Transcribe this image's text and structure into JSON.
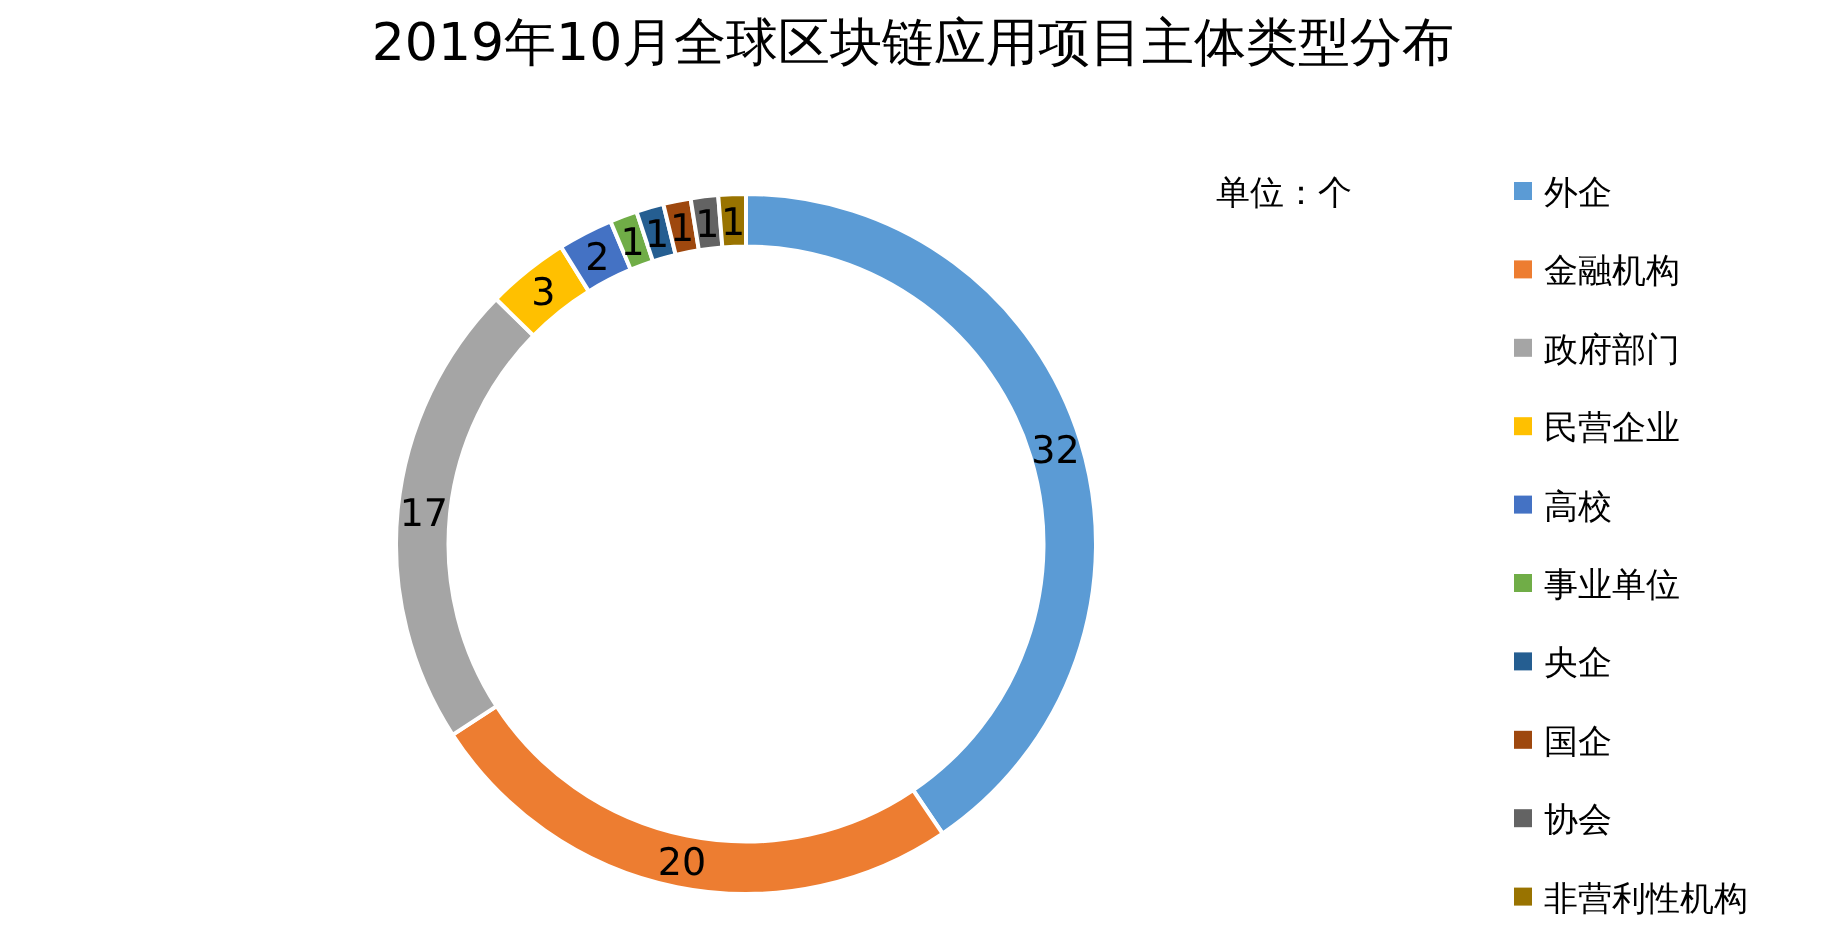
{
  "chart_data": {
    "type": "donut",
    "title": "2019年10月全球区块链应用项目主体类型分布",
    "categories": [
      "外企",
      "金融机构",
      "政府部门",
      "民营企业",
      "高校",
      "事业单位",
      "央企",
      "国企",
      "协会",
      "非营利性机构"
    ],
    "values": [
      32,
      20,
      17,
      3,
      2,
      1,
      1,
      1,
      1,
      1
    ],
    "colors": [
      "#5b9bd5",
      "#ed7d31",
      "#a5a5a5",
      "#ffc000",
      "#4472c4",
      "#70ad47",
      "#255e91",
      "#9e480e",
      "#636363",
      "#997300"
    ],
    "data_labels": true,
    "legend": "right",
    "annotations": [
      "单位：个"
    ]
  }
}
